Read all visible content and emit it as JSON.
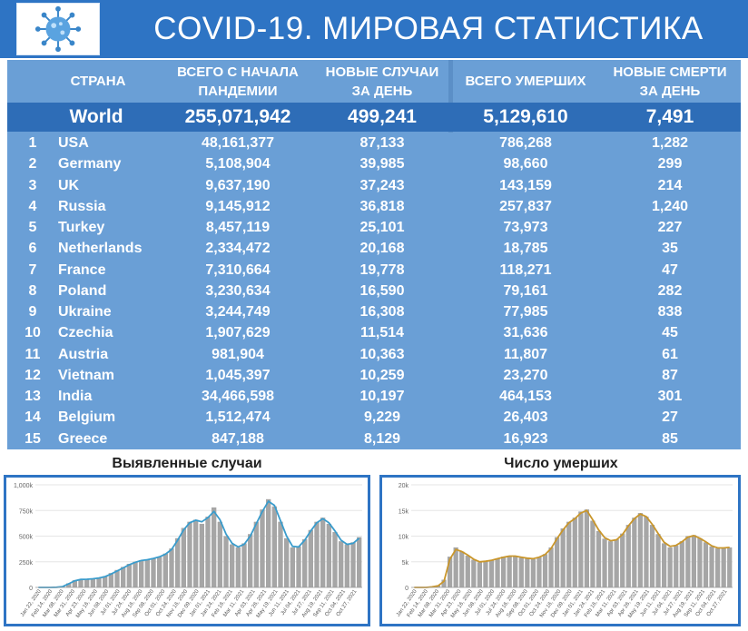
{
  "title": "COVID-19. МИРОВАЯ СТАТИСТИКА",
  "logo": "virus-icon",
  "colors": {
    "header": "#2e74c4",
    "table_bg": "#6a9fd6",
    "world_row": "#2e6db7",
    "cases_line": "#3a9ccc",
    "deaths_line": "#c9962b",
    "bars": "#a6a6a6"
  },
  "table": {
    "headers": {
      "country": "СТРАНА",
      "total_line1": "ВСЕГО С НАЧАЛА",
      "total_line2": "ПАНДЕМИИ",
      "new_line1": "НОВЫЕ СЛУЧАИ",
      "new_line2": "ЗА ДЕНЬ",
      "deaths": "ВСЕГО УМЕРШИХ",
      "new_deaths_line1": "НОВЫЕ СМЕРТИ",
      "new_deaths_line2": "ЗА ДЕНЬ"
    },
    "world": {
      "country": "World",
      "total": "255,071,942",
      "new": "499,241",
      "deaths": "5,129,610",
      "new_deaths": "7,491"
    },
    "rows": [
      {
        "rank": "1",
        "country": "USA",
        "total": "48,161,377",
        "new": "87,133",
        "deaths": "786,268",
        "new_deaths": "1,282"
      },
      {
        "rank": "2",
        "country": "Germany",
        "total": "5,108,904",
        "new": "39,985",
        "deaths": "98,660",
        "new_deaths": "299"
      },
      {
        "rank": "3",
        "country": "UK",
        "total": "9,637,190",
        "new": "37,243",
        "deaths": "143,159",
        "new_deaths": "214"
      },
      {
        "rank": "4",
        "country": "Russia",
        "total": "9,145,912",
        "new": "36,818",
        "deaths": "257,837",
        "new_deaths": "1,240"
      },
      {
        "rank": "5",
        "country": "Turkey",
        "total": "8,457,119",
        "new": "25,101",
        "deaths": "73,973",
        "new_deaths": "227"
      },
      {
        "rank": "6",
        "country": "Netherlands",
        "total": "2,334,472",
        "new": "20,168",
        "deaths": "18,785",
        "new_deaths": "35"
      },
      {
        "rank": "7",
        "country": "France",
        "total": "7,310,664",
        "new": "19,778",
        "deaths": "118,271",
        "new_deaths": "47"
      },
      {
        "rank": "8",
        "country": "Poland",
        "total": "3,230,634",
        "new": "16,590",
        "deaths": "79,161",
        "new_deaths": "282"
      },
      {
        "rank": "9",
        "country": "Ukraine",
        "total": "3,244,749",
        "new": "16,308",
        "deaths": "77,985",
        "new_deaths": "838"
      },
      {
        "rank": "10",
        "country": "Czechia",
        "total": "1,907,629",
        "new": "11,514",
        "deaths": "31,636",
        "new_deaths": "45"
      },
      {
        "rank": "11",
        "country": "Austria",
        "total": "981,904",
        "new": "10,363",
        "deaths": "11,807",
        "new_deaths": "61"
      },
      {
        "rank": "12",
        "country": "Vietnam",
        "total": "1,045,397",
        "new": "10,259",
        "deaths": "23,270",
        "new_deaths": "87"
      },
      {
        "rank": "13",
        "country": "India",
        "total": "34,466,598",
        "new": "10,197",
        "deaths": "464,153",
        "new_deaths": "301"
      },
      {
        "rank": "14",
        "country": "Belgium",
        "total": "1,512,474",
        "new": "9,229",
        "deaths": "26,403",
        "new_deaths": "27"
      },
      {
        "rank": "15",
        "country": "Greece",
        "total": "847,188",
        "new": "8,129",
        "deaths": "16,923",
        "new_deaths": "85"
      }
    ]
  },
  "chart_data": [
    {
      "type": "bar",
      "title": "Выявленные случаи",
      "ylim": [
        0,
        1000000
      ],
      "yticks": [
        "0",
        "250k",
        "500k",
        "750k",
        "1,000k"
      ],
      "ytick_values": [
        0,
        250000,
        500000,
        750000,
        1000000
      ],
      "xticks": [
        "Jan 22, 2020",
        "Feb 14, 2020",
        "Mar 08, 2020",
        "Mar 31, 2020",
        "Apr 23, 2020",
        "May 16, 2020",
        "Jun 08, 2020",
        "Jul 01, 2020",
        "Jul 24, 2020",
        "Aug 16, 2020",
        "Sep 08, 2020",
        "Oct 01, 2020",
        "Oct 24, 2020",
        "Nov 16, 2020",
        "Dec 09, 2020",
        "Jan 01, 2021",
        "Jan 24, 2021",
        "Feb 16, 2021",
        "Mar 11, 2021",
        "Apr 03, 2021",
        "Apr 26, 2021",
        "May 19, 2021",
        "Jun 11, 2021",
        "Jul 04, 2021",
        "Jul 27, 2021",
        "Aug 19, 2021",
        "Sep 11, 2021",
        "Oct 04, 2021",
        "Oct 27, 2021"
      ],
      "grid": true,
      "series": [
        {
          "type": "bar",
          "values": [
            0,
            0,
            0,
            2000,
            10000,
            40000,
            70000,
            80000,
            78000,
            85000,
            95000,
            110000,
            140000,
            170000,
            200000,
            230000,
            250000,
            265000,
            270000,
            285000,
            300000,
            330000,
            380000,
            480000,
            580000,
            640000,
            660000,
            620000,
            690000,
            780000,
            640000,
            500000,
            420000,
            390000,
            430000,
            520000,
            640000,
            760000,
            860000,
            790000,
            640000,
            480000,
            390000,
            400000,
            470000,
            560000,
            640000,
            680000,
            620000,
            540000,
            450000,
            420000,
            440000,
            490000
          ]
        },
        {
          "type": "line",
          "values": [
            0,
            0,
            0,
            2000,
            8000,
            35000,
            65000,
            78000,
            80000,
            84000,
            92000,
            105000,
            130000,
            160000,
            190000,
            220000,
            245000,
            262000,
            270000,
            282000,
            298000,
            325000,
            370000,
            460000,
            560000,
            630000,
            655000,
            640000,
            680000,
            740000,
            660000,
            520000,
            430000,
            395000,
            420000,
            500000,
            620000,
            740000,
            840000,
            800000,
            650000,
            500000,
            400000,
            395000,
            460000,
            550000,
            630000,
            670000,
            630000,
            550000,
            460000,
            420000,
            430000,
            480000
          ]
        }
      ]
    },
    {
      "type": "bar",
      "title": "Число умерших",
      "ylim": [
        0,
        20000
      ],
      "yticks": [
        "0",
        "5k",
        "10k",
        "15k",
        "20k"
      ],
      "ytick_values": [
        0,
        5000,
        10000,
        15000,
        20000
      ],
      "xticks": [
        "Jan 22, 2020",
        "Feb 14, 2020",
        "Mar 08, 2020",
        "Mar 31, 2020",
        "Apr 23, 2020",
        "May 16, 2020",
        "Jun 08, 2020",
        "Jul 01, 2020",
        "Jul 24, 2020",
        "Aug 16, 2020",
        "Sep 08, 2020",
        "Oct 01, 2020",
        "Oct 24, 2020",
        "Nov 16, 2020",
        "Dec 09, 2020",
        "Jan 01, 2021",
        "Jan 24, 2021",
        "Feb 16, 2021",
        "Mar 11, 2021",
        "Apr 03, 2021",
        "Apr 26, 2021",
        "May 19, 2021",
        "Jun 11, 2021",
        "Jul 04, 2021",
        "Jul 27, 2021",
        "Aug 19, 2021",
        "Sep 11, 2021",
        "Oct 04, 2021",
        "Oct 27, 2021"
      ],
      "grid": true,
      "series": [
        {
          "type": "bar",
          "values": [
            0,
            0,
            0,
            100,
            400,
            1500,
            6000,
            7800,
            7000,
            6200,
            5400,
            4900,
            5100,
            5300,
            5600,
            6000,
            6200,
            6100,
            5800,
            5600,
            5500,
            5900,
            6500,
            7800,
            9800,
            11500,
            12800,
            13600,
            14800,
            15200,
            13000,
            11000,
            9500,
            9000,
            9400,
            10500,
            12200,
            13600,
            14500,
            13800,
            12200,
            10400,
            8600,
            7800,
            8200,
            9000,
            10000,
            10200,
            9600,
            8800,
            8000,
            7600,
            7700,
            7800
          ]
        },
        {
          "type": "line",
          "values": [
            0,
            0,
            0,
            100,
            300,
            1200,
            5500,
            7400,
            7000,
            6300,
            5500,
            5000,
            5100,
            5300,
            5600,
            5900,
            6100,
            6100,
            5900,
            5700,
            5600,
            5900,
            6400,
            7600,
            9500,
            11200,
            12600,
            13400,
            14500,
            15000,
            13200,
            11200,
            9700,
            9100,
            9300,
            10300,
            12000,
            13400,
            14300,
            13800,
            12300,
            10500,
            8800,
            8000,
            8200,
            8900,
            9800,
            10100,
            9600,
            8900,
            8100,
            7700,
            7700,
            7800
          ]
        }
      ]
    }
  ],
  "charts_meta": {
    "left_title": "Выявленные случаи",
    "right_title": "Число умерших"
  }
}
